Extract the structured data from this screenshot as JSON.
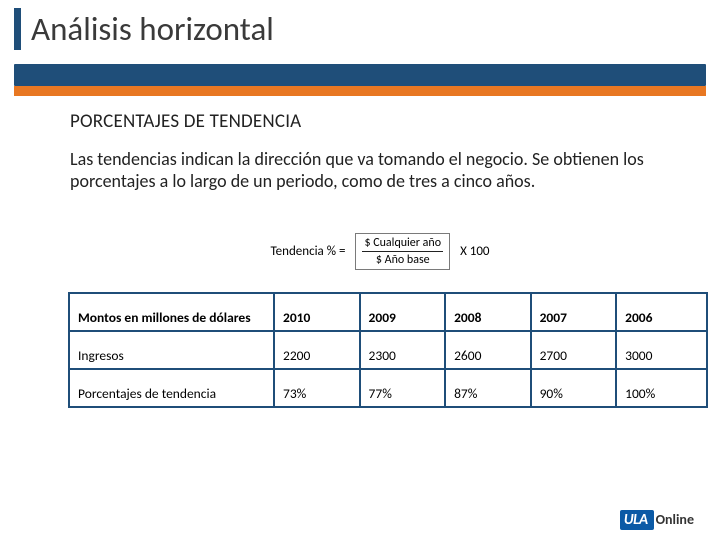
{
  "title": "Análisis horizontal",
  "subtitle": "PORCENTAJES DE TENDENCIA",
  "body": "Las tendencias indican la dirección que va tomando el negocio. Se obtienen los porcentajes a lo largo de un periodo, como de tres a cinco años.",
  "formula": {
    "label": "Tendencia % =",
    "numerator": "$ Cualquier año",
    "denominator": "$ Año base",
    "multiplier": "X 100"
  },
  "table": {
    "row_header": "Montos en millones de dólares",
    "columns": [
      "2010",
      "2009",
      "2008",
      "2007",
      "2006"
    ],
    "rows": [
      {
        "label": "Ingresos",
        "values": [
          "2200",
          "2300",
          "2600",
          "2700",
          "3000"
        ]
      },
      {
        "label": "Porcentajes de tendencia",
        "values": [
          "73%",
          "77%",
          "87%",
          "90%",
          "100%"
        ]
      }
    ]
  },
  "logo": {
    "brand": "ULA",
    "suffix": "Online"
  },
  "colors": {
    "accent_dark": "#1f4e79",
    "accent_orange": "#e87722",
    "logo_bg": "#0b5aa6"
  }
}
